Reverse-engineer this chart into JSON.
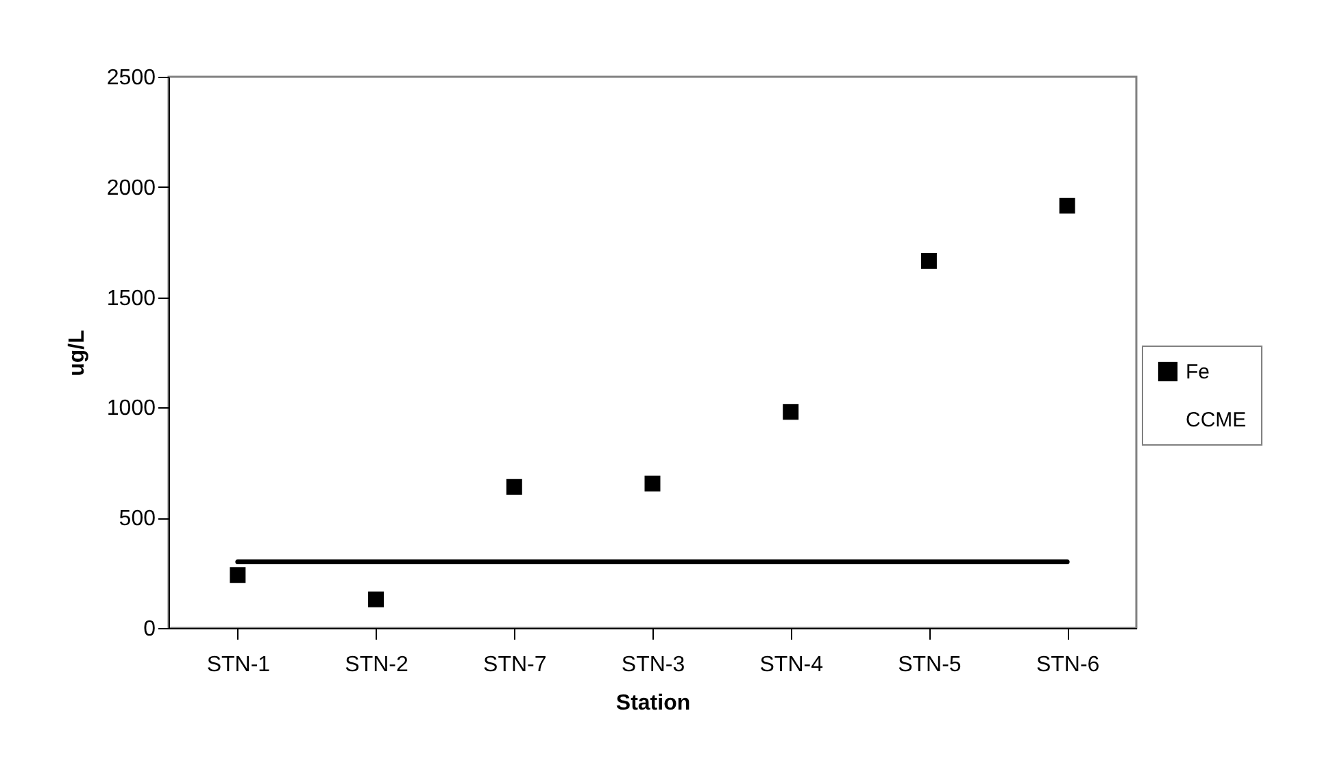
{
  "chart_data": {
    "type": "scatter",
    "xlabel": "Station",
    "ylabel": "ug/L",
    "categories": [
      "STN-1",
      "STN-2",
      "STN-7",
      "STN-3",
      "STN-4",
      "STN-5",
      "STN-6"
    ],
    "series": [
      {
        "name": "Fe",
        "type": "scatter",
        "color": "#000000",
        "marker": "square",
        "values": [
          240,
          130,
          640,
          655,
          980,
          1665,
          1915
        ]
      },
      {
        "name": "CCME",
        "type": "line",
        "color": "#000000",
        "line_style": "solid",
        "values": [
          300,
          300,
          300,
          300,
          300,
          300,
          300
        ]
      }
    ],
    "ylim": [
      0,
      2500
    ],
    "yticks": [
      0,
      500,
      1000,
      1500,
      2000,
      2500
    ],
    "grid": false,
    "legend": "right"
  }
}
